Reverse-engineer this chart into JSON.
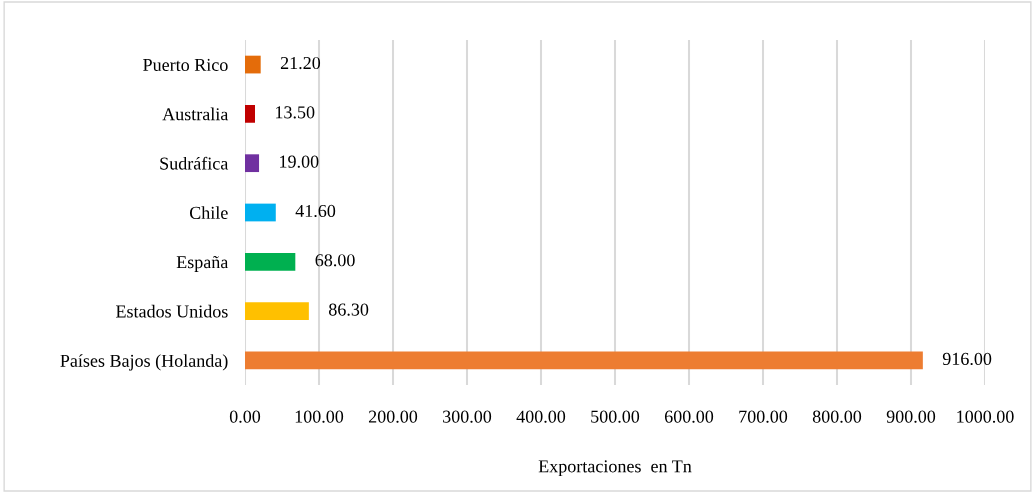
{
  "chart_data": {
    "type": "bar",
    "orientation": "horizontal",
    "categories": [
      "Puerto Rico",
      "Australia",
      "Sudráfica",
      "Chile",
      "España",
      "Estados Unidos",
      "Países Bajos (Holanda)"
    ],
    "values": [
      21.2,
      13.5,
      19.0,
      41.6,
      68.0,
      86.3,
      916.0
    ],
    "colors": [
      "#e46c0a",
      "#c00000",
      "#7030a0",
      "#00b0f0",
      "#00b050",
      "#ffc000",
      "#ed7d31"
    ],
    "value_labels": [
      "21.20",
      "13.50",
      "19.00",
      "41.60",
      "68.00",
      "86.30",
      "916.00"
    ],
    "xlabel": "Exportaciones  en Tn",
    "xlim": [
      0,
      1000
    ],
    "xticks": [
      {
        "value": 0,
        "label": "0.00"
      },
      {
        "value": 100,
        "label": "100.00"
      },
      {
        "value": 200,
        "label": "200.00"
      },
      {
        "value": 300,
        "label": "300.00"
      },
      {
        "value": 400,
        "label": "400.00"
      },
      {
        "value": 500,
        "label": "500.00"
      },
      {
        "value": 600,
        "label": "600.00"
      },
      {
        "value": 700,
        "label": "700.00"
      },
      {
        "value": 800,
        "label": "800.00"
      },
      {
        "value": 900,
        "label": "900.00"
      },
      {
        "value": 1000,
        "label": "1000.00"
      }
    ],
    "grid": "x",
    "legend": false
  }
}
